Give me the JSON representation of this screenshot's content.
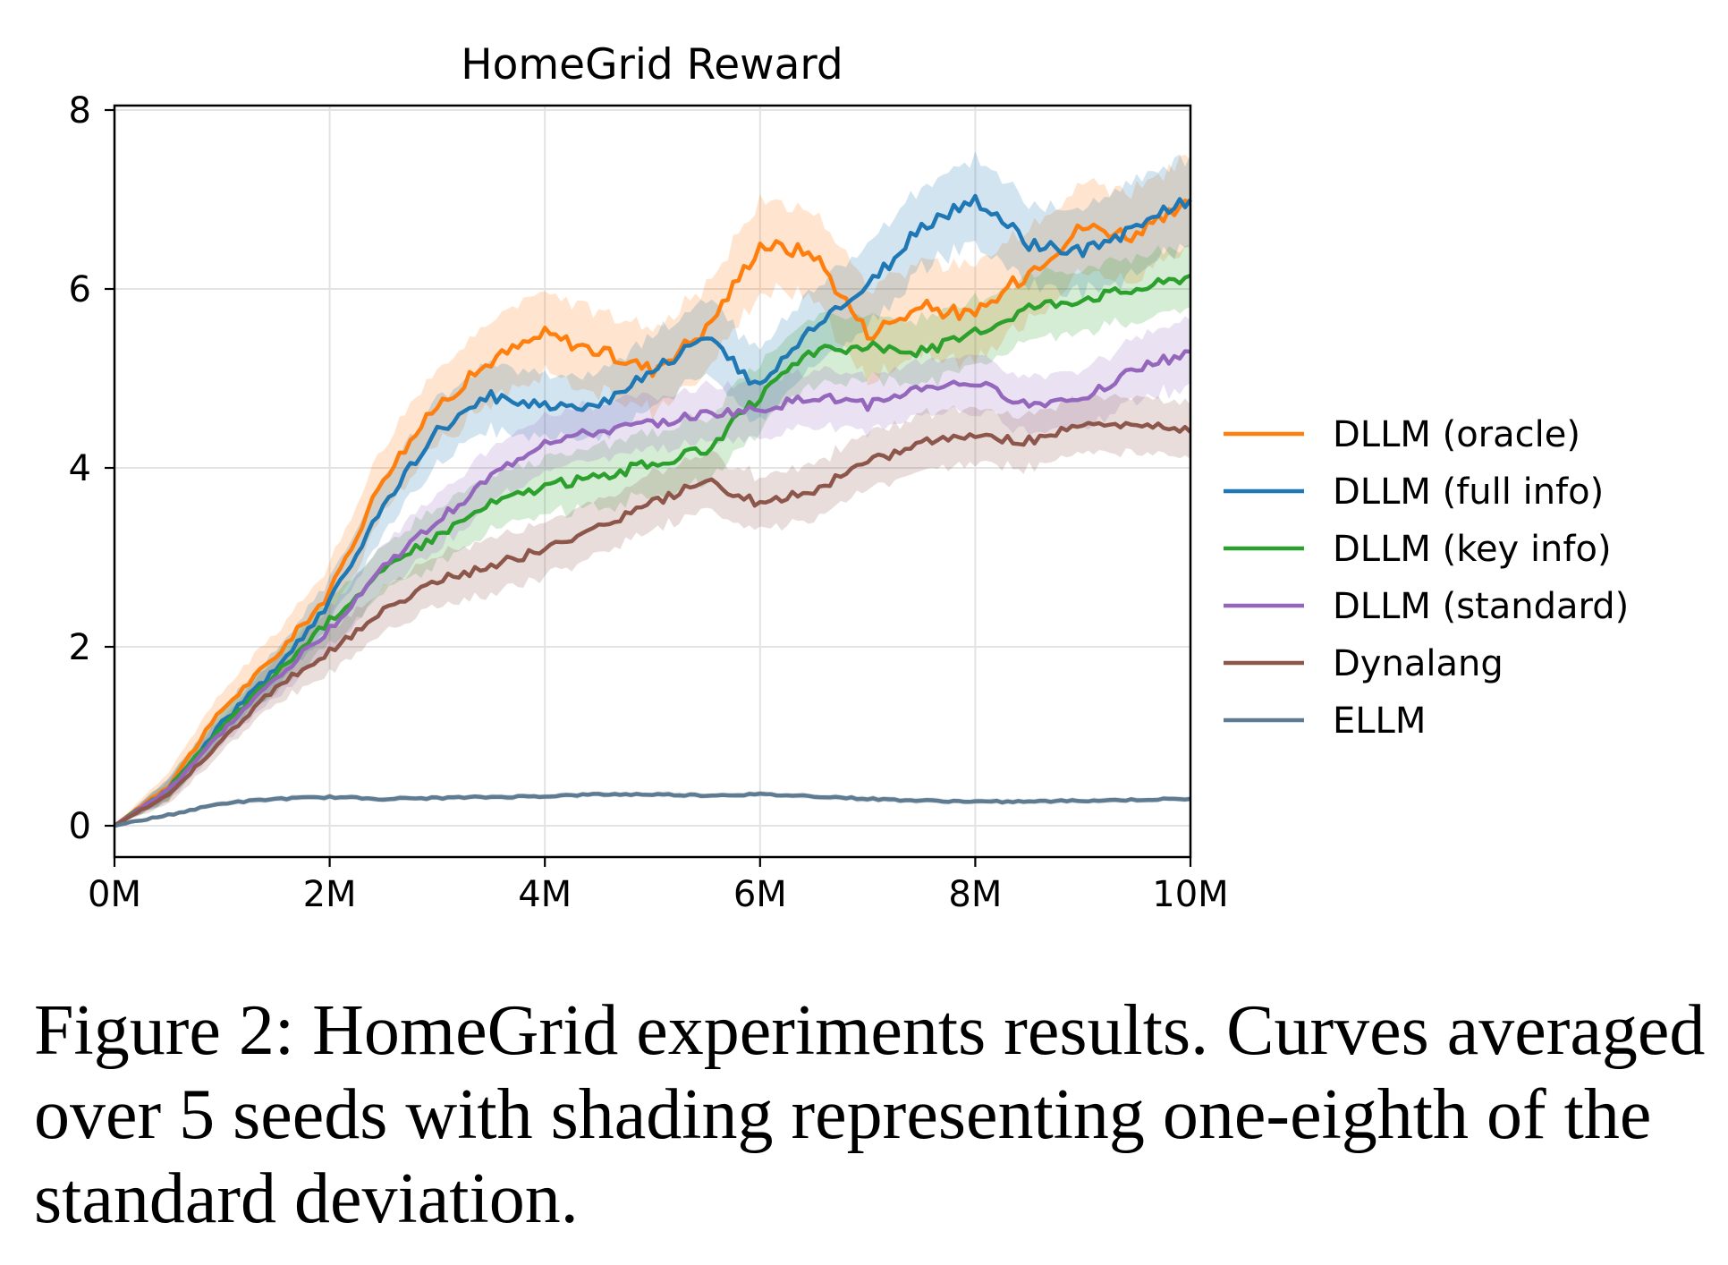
{
  "figure": {
    "caption": "Figure 2: HomeGrid experiments results. Curves averaged over 5 seeds with shading representing one-eighth of the standard deviation."
  },
  "chart_data": {
    "type": "line",
    "title": "HomeGrid Reward",
    "xlabel": "",
    "ylabel": "",
    "xlim": [
      0,
      10
    ],
    "ylim": [
      -0.35,
      8.05
    ],
    "x_unit": "M",
    "x_ticks": [
      0,
      2,
      4,
      6,
      8,
      10
    ],
    "x_tick_labels": [
      "0M",
      "2M",
      "4M",
      "6M",
      "8M",
      "10M"
    ],
    "y_ticks": [
      0,
      2,
      4,
      6,
      8
    ],
    "y_tick_labels": [
      "0",
      "2",
      "4",
      "6",
      "8"
    ],
    "grid": true,
    "legend_position": "right",
    "x": [
      0,
      0.5,
      1,
      1.5,
      2,
      2.5,
      3,
      3.5,
      4,
      4.5,
      5,
      5.5,
      6,
      6.5,
      7,
      7.5,
      8,
      8.5,
      9,
      9.5,
      10
    ],
    "series": [
      {
        "name": "DLLM (oracle)",
        "color": "#ff7f0e",
        "values": [
          0,
          0.45,
          1.3,
          1.9,
          2.6,
          3.9,
          4.7,
          5.2,
          5.5,
          5.3,
          5.1,
          5.55,
          6.5,
          6.4,
          5.5,
          5.8,
          5.7,
          6.2,
          6.7,
          6.6,
          6.95
        ],
        "band": [
          0,
          0.15,
          0.2,
          0.25,
          0.3,
          0.35,
          0.4,
          0.45,
          0.45,
          0.45,
          0.45,
          0.45,
          0.5,
          0.5,
          0.5,
          0.5,
          0.5,
          0.5,
          0.5,
          0.5,
          0.5
        ]
      },
      {
        "name": "DLLM (full info)",
        "color": "#1f77b4",
        "values": [
          0,
          0.4,
          1.15,
          1.75,
          2.5,
          3.6,
          4.4,
          4.8,
          4.7,
          4.7,
          5.1,
          5.45,
          4.9,
          5.6,
          6.0,
          6.7,
          7.0,
          6.5,
          6.4,
          6.7,
          7.0
        ],
        "band": [
          0,
          0.12,
          0.15,
          0.2,
          0.25,
          0.3,
          0.35,
          0.35,
          0.35,
          0.35,
          0.4,
          0.4,
          0.4,
          0.4,
          0.45,
          0.45,
          0.45,
          0.45,
          0.45,
          0.5,
          0.5
        ]
      },
      {
        "name": "DLLM (key info)",
        "color": "#2ca02c",
        "values": [
          0,
          0.4,
          1.1,
          1.7,
          2.3,
          2.85,
          3.25,
          3.6,
          3.8,
          3.9,
          4.05,
          4.2,
          4.8,
          5.3,
          5.35,
          5.3,
          5.5,
          5.8,
          5.9,
          6.0,
          6.15
        ],
        "band": [
          0,
          0.12,
          0.15,
          0.2,
          0.25,
          0.25,
          0.3,
          0.3,
          0.3,
          0.35,
          0.35,
          0.35,
          0.35,
          0.35,
          0.35,
          0.35,
          0.35,
          0.35,
          0.35,
          0.35,
          0.35
        ]
      },
      {
        "name": "DLLM (standard)",
        "color": "#9467bd",
        "values": [
          0,
          0.4,
          1.05,
          1.65,
          2.2,
          2.9,
          3.4,
          3.9,
          4.3,
          4.4,
          4.5,
          4.6,
          4.65,
          4.8,
          4.7,
          4.9,
          4.95,
          4.7,
          4.8,
          5.1,
          5.3
        ],
        "band": [
          0,
          0.12,
          0.15,
          0.2,
          0.25,
          0.25,
          0.3,
          0.3,
          0.3,
          0.3,
          0.3,
          0.3,
          0.3,
          0.3,
          0.3,
          0.3,
          0.3,
          0.3,
          0.3,
          0.35,
          0.35
        ]
      },
      {
        "name": "Dynalang",
        "color": "#8c564b",
        "values": [
          0,
          0.35,
          0.95,
          1.55,
          1.95,
          2.4,
          2.75,
          2.9,
          3.1,
          3.35,
          3.6,
          3.85,
          3.6,
          3.75,
          4.05,
          4.3,
          4.35,
          4.3,
          4.5,
          4.5,
          4.4
        ],
        "band": [
          0,
          0.1,
          0.12,
          0.18,
          0.22,
          0.25,
          0.28,
          0.3,
          0.3,
          0.3,
          0.3,
          0.3,
          0.3,
          0.3,
          0.3,
          0.3,
          0.3,
          0.3,
          0.3,
          0.3,
          0.3
        ]
      },
      {
        "name": "ELLM",
        "color": "#5f7b91",
        "values": [
          0,
          0.12,
          0.25,
          0.3,
          0.32,
          0.3,
          0.31,
          0.32,
          0.33,
          0.35,
          0.35,
          0.34,
          0.35,
          0.33,
          0.3,
          0.28,
          0.27,
          0.27,
          0.28,
          0.29,
          0.3
        ],
        "band": [
          0,
          0.02,
          0.03,
          0.03,
          0.03,
          0.03,
          0.03,
          0.03,
          0.03,
          0.03,
          0.03,
          0.03,
          0.03,
          0.03,
          0.03,
          0.03,
          0.03,
          0.03,
          0.03,
          0.03,
          0.03
        ]
      }
    ]
  }
}
